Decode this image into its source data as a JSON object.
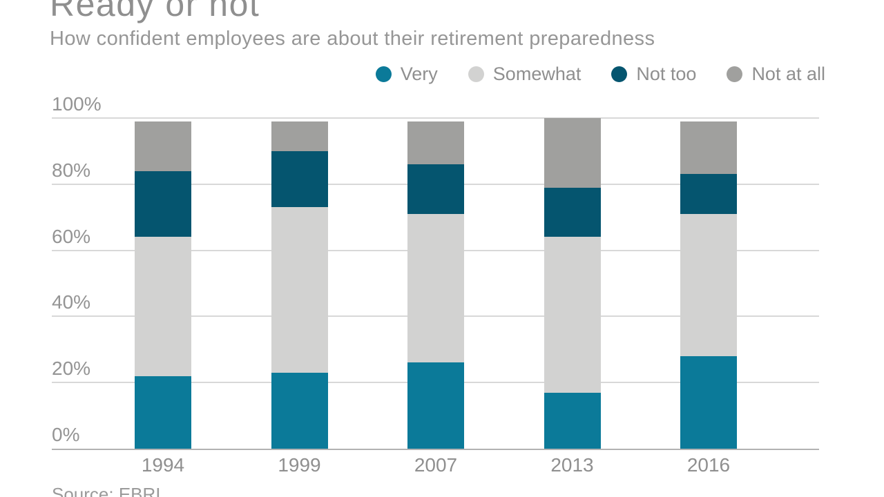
{
  "chart_data": {
    "type": "bar",
    "stacked": true,
    "title": "Ready or not",
    "subtitle": "How confident employees are about their retirement preparedness",
    "categories": [
      "1994",
      "1999",
      "2007",
      "2013",
      "2016"
    ],
    "series": [
      {
        "name": "Very",
        "color": "#0b7a99",
        "values": [
          22,
          23,
          26,
          17,
          28
        ]
      },
      {
        "name": "Somewhat",
        "color": "#d2d2d1",
        "values": [
          42,
          50,
          45,
          47,
          43
        ]
      },
      {
        "name": "Not too",
        "color": "#05556f",
        "values": [
          20,
          17,
          15,
          15,
          12
        ]
      },
      {
        "name": "Not at all",
        "color": "#a0a09e",
        "values": [
          15,
          9,
          13,
          21,
          16
        ]
      }
    ],
    "yticks": [
      "0%",
      "20%",
      "40%",
      "60%",
      "80%",
      "100%"
    ],
    "ylim": [
      0,
      100
    ],
    "grid": true,
    "legend_position": "top-right"
  },
  "source": {
    "note": "Source: EBRI"
  }
}
